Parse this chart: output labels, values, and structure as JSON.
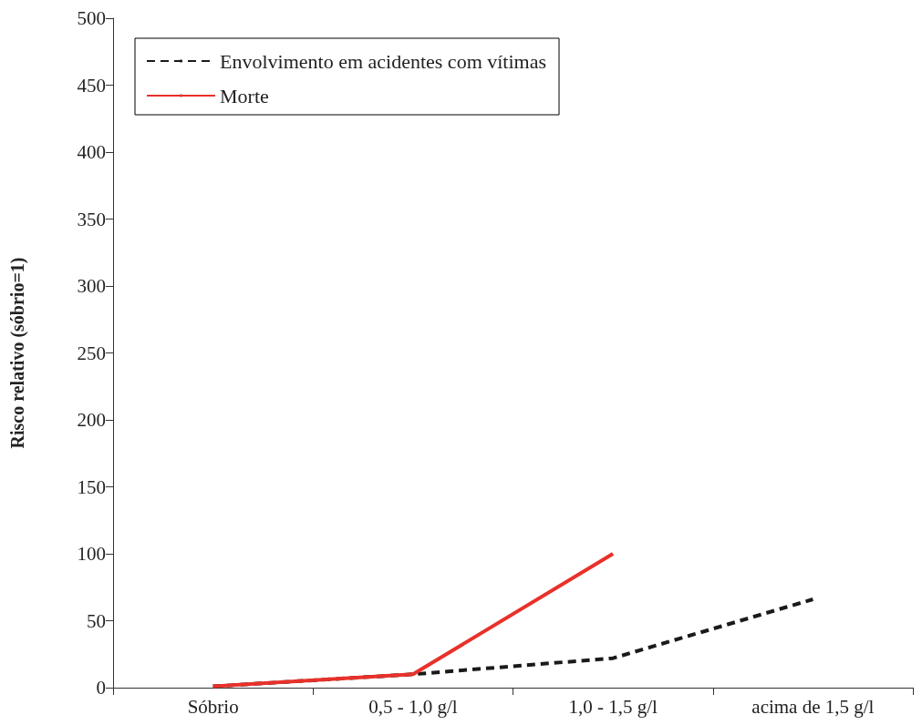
{
  "chart_data": {
    "type": "line",
    "ylabel": "Risco relativo (sóbrio=1)",
    "categories": [
      "Sóbrio",
      "0,5 - 1,0 g/l",
      "1,0 - 1,5 g/l",
      "acima de 1,5 g/l"
    ],
    "ylim": [
      0,
      500
    ],
    "yticks": [
      0,
      50,
      100,
      150,
      200,
      250,
      300,
      350,
      400,
      450,
      500
    ],
    "series": [
      {
        "name": "Envolvimento em acidentes com vítimas",
        "color": "#1a1a1a",
        "line_style": "dashed",
        "values": [
          1,
          10,
          22,
          66
        ]
      },
      {
        "name": "Morte",
        "color": "#e8312a",
        "line_style": "solid",
        "values": [
          1,
          10,
          100,
          null
        ]
      }
    ],
    "legend": "top left",
    "grid": false,
    "marker": "none"
  }
}
